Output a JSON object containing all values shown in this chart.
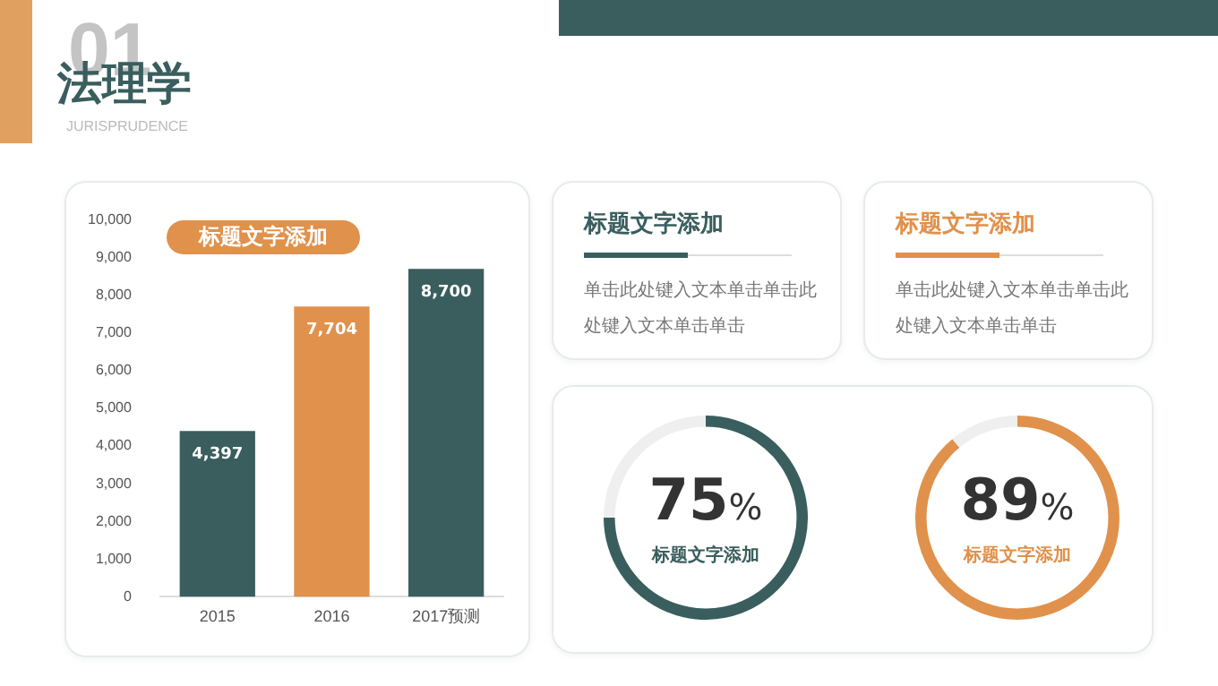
{
  "chart_data": [
    {
      "type": "other",
      "title": "法理学",
      "subtitle": "JURISPRUDENCE",
      "annotations": [
        "01"
      ]
    },
    {
      "type": "bar",
      "title": "标题文字添加",
      "categories": [
        "2015",
        "2016",
        "2017预测"
      ],
      "values": [
        4397,
        7704,
        8700
      ],
      "colors": [
        "#3a5e5e",
        "#e0914b",
        "#3a5e5e"
      ],
      "value_labels": [
        "4,397",
        "7,704",
        "8,700"
      ],
      "ylim": [
        0,
        10000
      ],
      "yticks": [
        0,
        {
          "value": 1000,
          "label": "1,000"
        },
        {
          "value": 2000,
          "label": "2,000"
        },
        {
          "value": 3000,
          "label": "3,000"
        },
        {
          "value": 4000,
          "label": "4,000"
        },
        {
          "value": 5000,
          "label": "5,000"
        },
        {
          "value": 6000,
          "label": "6,000"
        },
        {
          "value": 7000,
          "label": "7,000"
        },
        {
          "value": 8000,
          "label": "8,000"
        },
        {
          "value": 9000,
          "label": "9,000"
        },
        {
          "value": 10000,
          "label": "10,000"
        }
      ],
      "grid": false,
      "legend": false
    },
    {
      "type": "other",
      "title": "标题文字添加",
      "annotations": [
        "单击此处键入文本单击单击此处键入文本单击单击"
      ]
    },
    {
      "type": "other",
      "title": "标题文字添加",
      "annotations": [
        "单击此处键入文本单击单击此处键入文本单击单击"
      ]
    },
    {
      "type": "donut",
      "categories": [
        "标题文字添加",
        null
      ],
      "values": [
        75,
        25
      ],
      "colors": [
        "#3a5e5e",
        "#efefef"
      ],
      "value_labels": [
        "75%",
        null
      ],
      "legend": false
    },
    {
      "type": "donut",
      "categories": [
        "标题文字添加",
        null
      ],
      "values": [
        89,
        11
      ],
      "colors": [
        "#e0914b",
        "#efefef"
      ],
      "value_labels": [
        "89%",
        null
      ],
      "legend": false
    }
  ]
}
